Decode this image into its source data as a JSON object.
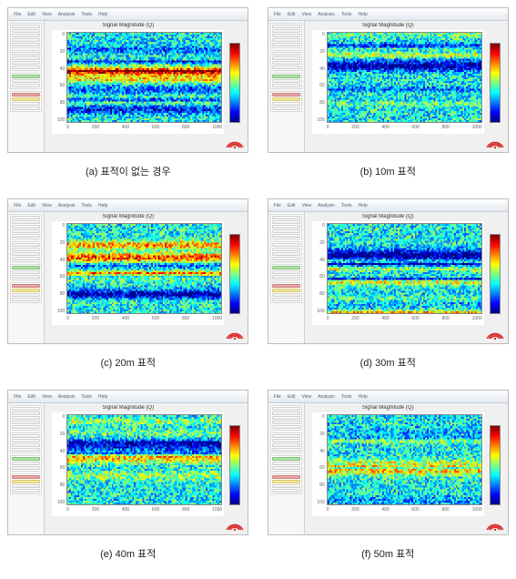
{
  "colormap": {
    "type": "jet",
    "stops": [
      "#00007f",
      "#0000ff",
      "#007fff",
      "#00ffff",
      "#7fff7f",
      "#ffff00",
      "#ff7f00",
      "#ff0000",
      "#7f0000"
    ]
  },
  "app": {
    "menus": [
      "File",
      "Edit",
      "View",
      "Analysis",
      "Tools",
      "Help"
    ],
    "sidebar_groups": [
      {
        "buttons": [
          "plain",
          "plain",
          "plain",
          "plain",
          "plain"
        ]
      },
      {
        "buttons": [
          "plain",
          "plain",
          "plain",
          "plain"
        ]
      },
      {
        "buttons": [
          "green",
          "plain",
          "plain"
        ]
      },
      {
        "buttons": [
          "red",
          "yel",
          "plain",
          "plain"
        ]
      }
    ],
    "plot_title": "Signal Magnitude (Q)",
    "x_ticks": [
      "0",
      "200",
      "400",
      "600",
      "800",
      "1000"
    ],
    "y_ticks": [
      "0",
      "20",
      "40",
      "60",
      "80",
      "100"
    ]
  },
  "heatmap_render": {
    "cols": 90,
    "rows": 48,
    "bias_mean": 0.38,
    "band_count": 10,
    "band_amp_min": 0.08,
    "band_amp_max": 0.4,
    "noise_amp": 0.18
  },
  "panels": [
    {
      "id": "a",
      "caption": "(a) 표적이 없는 경우",
      "seed": 11
    },
    {
      "id": "b",
      "caption": "(b) 10m 표적",
      "seed": 22
    },
    {
      "id": "c",
      "caption": "(c) 20m 표적",
      "seed": 33
    },
    {
      "id": "d",
      "caption": "(d) 30m 표적",
      "seed": 44
    },
    {
      "id": "e",
      "caption": "(e) 40m 표적",
      "seed": 55
    },
    {
      "id": "f",
      "caption": "(f) 50m 표적",
      "seed": 66
    }
  ]
}
